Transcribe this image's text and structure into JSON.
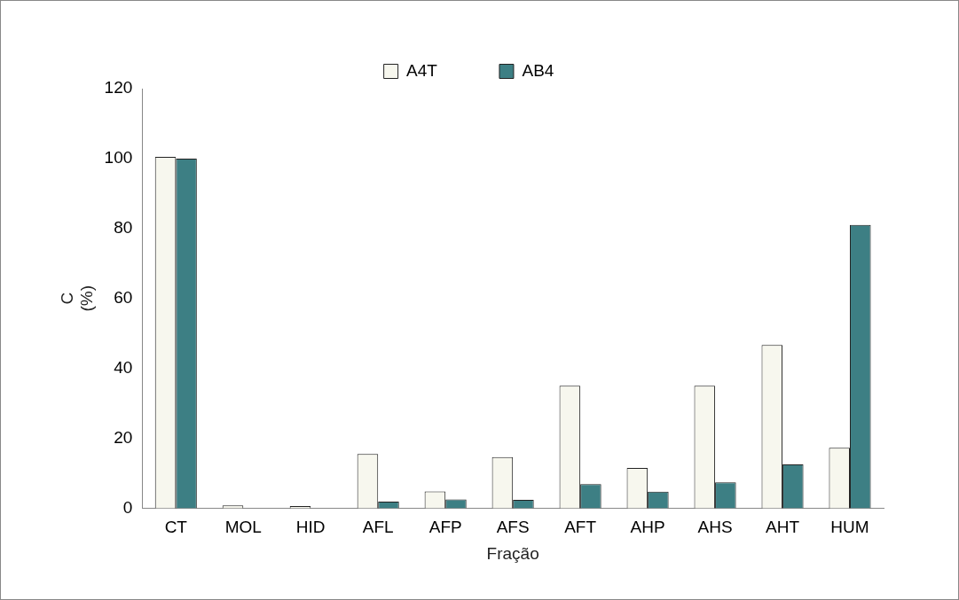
{
  "chart_data": {
    "type": "bar",
    "xlabel": "Fração",
    "ylabel": "C\n(%)",
    "categories": [
      "CT",
      "MOL",
      "HID",
      "AFL",
      "AFP",
      "AFS",
      "AFT",
      "AHP",
      "AHS",
      "AHT",
      "HUM"
    ],
    "series": [
      {
        "name": "A4T",
        "color": "#f7f7ee",
        "values": [
          100.5,
          0.8,
          0.6,
          15.5,
          4.8,
          14.6,
          35,
          11.5,
          35,
          46.7,
          17.3
        ]
      },
      {
        "name": "AB4",
        "color": "#3d7f84",
        "values": [
          100,
          0,
          0,
          1.9,
          2.5,
          2.4,
          6.9,
          4.7,
          7.4,
          12.5,
          81
        ]
      }
    ],
    "ylim": [
      0,
      120
    ],
    "yticks": [
      0,
      20,
      40,
      60,
      80,
      100,
      120
    ],
    "grid": false,
    "legend": "top"
  }
}
